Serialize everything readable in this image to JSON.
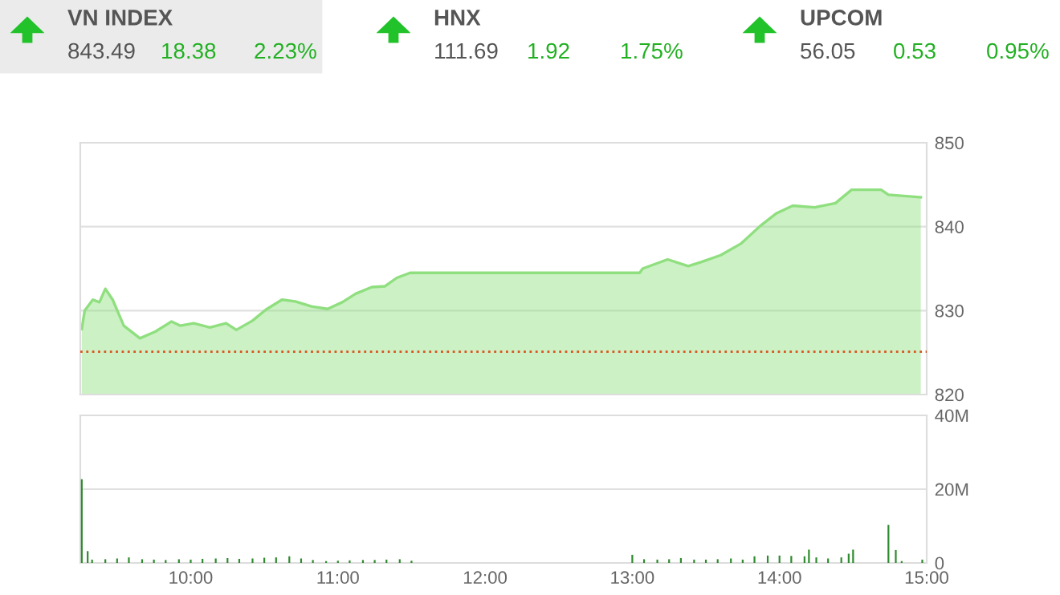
{
  "chart_data": [
    {
      "type": "other",
      "annotations": [
        "VN INDEX",
        "843.49",
        "18.38",
        "2.23%",
        "HNX",
        "111.69",
        "1.92",
        "1.75%",
        "UPCOM",
        "56.05",
        "0.53",
        "0.95%"
      ]
    },
    {
      "type": "area",
      "tick_labels": "y",
      "grid": "y",
      "legend": false,
      "xlim": [
        9.25,
        15.0
      ],
      "ylim": [
        820,
        850
      ],
      "yticks": [
        820,
        830,
        840,
        850
      ],
      "ref_lines": [
        {
          "axis": "y",
          "value": 825.1,
          "color": "#d9531e",
          "line_style": "dotted"
        }
      ],
      "series": [
        {
          "color": "#8fdf7f",
          "x": [
            9.26,
            9.28,
            9.335,
            9.38,
            9.42,
            9.47,
            9.545,
            9.655,
            9.76,
            9.87,
            9.93,
            10.02,
            10.13,
            10.24,
            10.31,
            10.42,
            10.51,
            10.62,
            10.71,
            10.82,
            10.93,
            11.03,
            11.12,
            11.23,
            11.32,
            11.4,
            11.49,
            13.04,
            13.05,
            13.07,
            13.24,
            13.38,
            13.47,
            13.6,
            13.74,
            13.87,
            13.98,
            14.09,
            14.24,
            14.38,
            14.49,
            14.69,
            14.74,
            14.96
          ],
          "values": [
            827.8,
            830.0,
            831.3,
            831.0,
            832.6,
            831.3,
            828.2,
            826.7,
            827.5,
            828.7,
            828.2,
            828.5,
            828.0,
            828.5,
            827.7,
            828.8,
            830.1,
            831.3,
            831.1,
            830.5,
            830.2,
            831.0,
            832.0,
            832.8,
            832.9,
            833.9,
            834.5,
            834.5,
            834.5,
            835.0,
            836.1,
            835.3,
            835.8,
            836.6,
            838.0,
            840.1,
            841.6,
            842.5,
            842.3,
            842.8,
            844.4,
            844.4,
            843.8,
            843.5
          ]
        }
      ]
    },
    {
      "type": "bar",
      "grid": "y",
      "legend": false,
      "xlim": [
        9.25,
        15.0
      ],
      "xticks": [
        {
          "value": 10,
          "label": "10:00"
        },
        {
          "value": 11,
          "label": "11:00"
        },
        {
          "value": 12,
          "label": "12:00"
        },
        {
          "value": 13,
          "label": "13:00"
        },
        {
          "value": 14,
          "label": "14:00"
        },
        {
          "value": 15,
          "label": "15:00"
        }
      ],
      "ylim": [
        0,
        40
      ],
      "yticks": [
        0,
        {
          "value": 20,
          "label": "20M"
        },
        {
          "value": 40,
          "label": "40M"
        }
      ],
      "series": [
        {
          "color": "#2e8b2e",
          "x": [
            9.26,
            9.3,
            9.33,
            9.42,
            9.5,
            9.58,
            9.67,
            9.75,
            9.83,
            9.92,
            10.0,
            10.08,
            10.17,
            10.25,
            10.33,
            10.42,
            10.5,
            10.58,
            10.67,
            10.75,
            10.83,
            10.92,
            11.0,
            11.08,
            11.17,
            11.25,
            11.33,
            11.42,
            11.5,
            13.0,
            13.08,
            13.17,
            13.25,
            13.33,
            13.42,
            13.5,
            13.58,
            13.67,
            13.75,
            13.83,
            13.92,
            14.0,
            14.08,
            14.17,
            14.2,
            14.25,
            14.33,
            14.42,
            14.47,
            14.5,
            14.74,
            14.79,
            14.83,
            14.97
          ],
          "values": [
            22.7,
            3.2,
            0.9,
            1.0,
            1.2,
            1.5,
            1.0,
            0.9,
            0.8,
            1.0,
            0.9,
            1.1,
            1.2,
            1.3,
            1.1,
            1.2,
            1.4,
            1.5,
            1.8,
            1.2,
            0.8,
            0.5,
            0.6,
            0.7,
            0.8,
            0.8,
            0.9,
            1.0,
            0.6,
            2.2,
            1.0,
            0.9,
            1.0,
            1.3,
            0.9,
            0.9,
            1.0,
            1.2,
            0.9,
            1.8,
            2.0,
            2.0,
            1.9,
            1.8,
            3.6,
            1.5,
            1.2,
            1.5,
            2.5,
            3.6,
            10.3,
            3.5,
            0.5,
            0.9
          ]
        }
      ]
    }
  ]
}
